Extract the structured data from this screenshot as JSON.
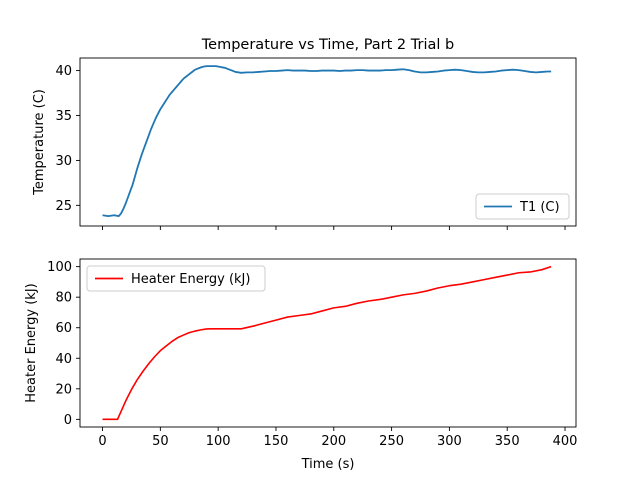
{
  "chart_data": [
    {
      "type": "line",
      "title": "Temperature vs Time, Part 2 Trial b",
      "xlabel": "",
      "ylabel": "Temperature (C)",
      "xlim": [
        -19.5,
        409.5
      ],
      "ylim": [
        22.7,
        41.4
      ],
      "xticks": [
        0,
        50,
        100,
        150,
        200,
        250,
        300,
        350,
        400
      ],
      "xtick_labels_visible": false,
      "yticks": [
        25,
        30,
        35,
        40
      ],
      "ytick_labels": [
        "25",
        "30",
        "35",
        "40"
      ],
      "grid": false,
      "legend_position": "lower right",
      "series": [
        {
          "name": "T1 (C)",
          "color": "#1f77b4",
          "x": [
            0,
            5,
            10,
            14,
            16,
            18,
            20,
            22,
            24,
            26,
            28,
            30,
            32,
            34,
            36,
            38,
            40,
            42,
            44,
            46,
            48,
            50,
            52,
            54,
            56,
            58,
            60,
            62,
            64,
            66,
            68,
            70,
            72,
            74,
            76,
            78,
            80,
            82,
            84,
            86,
            88,
            90,
            92,
            94,
            96,
            98,
            100,
            102,
            104,
            106,
            108,
            110,
            112,
            115,
            120,
            125,
            130,
            135,
            140,
            145,
            150,
            155,
            160,
            165,
            170,
            175,
            180,
            185,
            190,
            195,
            200,
            205,
            210,
            215,
            220,
            225,
            230,
            235,
            240,
            245,
            250,
            255,
            260,
            265,
            270,
            275,
            280,
            285,
            290,
            295,
            300,
            305,
            310,
            315,
            320,
            325,
            330,
            335,
            340,
            345,
            350,
            355,
            360,
            365,
            370,
            375,
            380,
            385,
            388
          ],
          "y": [
            23.9,
            23.8,
            23.9,
            23.8,
            24.1,
            24.6,
            25.2,
            25.9,
            26.6,
            27.3,
            28.2,
            29.1,
            29.9,
            30.7,
            31.4,
            32.1,
            32.8,
            33.5,
            34.1,
            34.7,
            35.2,
            35.7,
            36.1,
            36.5,
            36.9,
            37.3,
            37.6,
            37.9,
            38.2,
            38.5,
            38.8,
            39.1,
            39.3,
            39.5,
            39.7,
            39.9,
            40.1,
            40.2,
            40.3,
            40.4,
            40.45,
            40.5,
            40.5,
            40.5,
            40.5,
            40.5,
            40.45,
            40.4,
            40.35,
            40.3,
            40.2,
            40.1,
            40.0,
            39.85,
            39.75,
            39.8,
            39.8,
            39.85,
            39.9,
            39.95,
            39.95,
            40.0,
            40.05,
            40.0,
            40.0,
            40.0,
            39.95,
            39.95,
            40.0,
            40.0,
            40.0,
            39.95,
            40.0,
            40.0,
            40.05,
            40.05,
            40.0,
            40.0,
            40.0,
            40.05,
            40.05,
            40.1,
            40.15,
            40.05,
            39.9,
            39.8,
            39.8,
            39.85,
            39.9,
            40.0,
            40.05,
            40.1,
            40.05,
            39.95,
            39.85,
            39.8,
            39.8,
            39.85,
            39.9,
            40.0,
            40.05,
            40.1,
            40.05,
            39.95,
            39.85,
            39.8,
            39.85,
            39.9,
            39.9
          ]
        }
      ]
    },
    {
      "type": "line",
      "title": "",
      "xlabel": "Time (s)",
      "ylabel": "Heater Energy (kJ)",
      "xlim": [
        -19.5,
        409.5
      ],
      "ylim": [
        -5,
        105
      ],
      "xticks": [
        0,
        50,
        100,
        150,
        200,
        250,
        300,
        350,
        400
      ],
      "xtick_labels": [
        "0",
        "50",
        "100",
        "150",
        "200",
        "250",
        "300",
        "350",
        "400"
      ],
      "yticks": [
        0,
        20,
        40,
        60,
        80,
        100
      ],
      "ytick_labels": [
        "0",
        "20",
        "40",
        "60",
        "80",
        "100"
      ],
      "grid": false,
      "legend_position": "upper left",
      "series": [
        {
          "name": "Heater Energy (kJ)",
          "color": "#ff0000",
          "x": [
            0,
            5,
            10,
            13,
            15,
            20,
            25,
            30,
            35,
            40,
            45,
            50,
            55,
            60,
            65,
            70,
            75,
            80,
            85,
            90,
            95,
            100,
            110,
            120,
            130,
            140,
            150,
            160,
            170,
            180,
            190,
            200,
            210,
            220,
            230,
            240,
            250,
            260,
            270,
            280,
            290,
            300,
            310,
            320,
            330,
            340,
            350,
            360,
            370,
            380,
            388
          ],
          "y": [
            0,
            0,
            0,
            0,
            3.5,
            12,
            19.5,
            26,
            31.5,
            36.5,
            41,
            45,
            48,
            51,
            53.5,
            55.2,
            56.8,
            57.8,
            58.6,
            59.2,
            59.3,
            59.3,
            59.3,
            59.3,
            61,
            63,
            65,
            67,
            68,
            69,
            71,
            73,
            74,
            76,
            77.5,
            78.5,
            80,
            81.5,
            82.5,
            84,
            86,
            87.5,
            88.5,
            90,
            91.5,
            93,
            94.5,
            96,
            96.5,
            98,
            100
          ]
        }
      ]
    }
  ]
}
